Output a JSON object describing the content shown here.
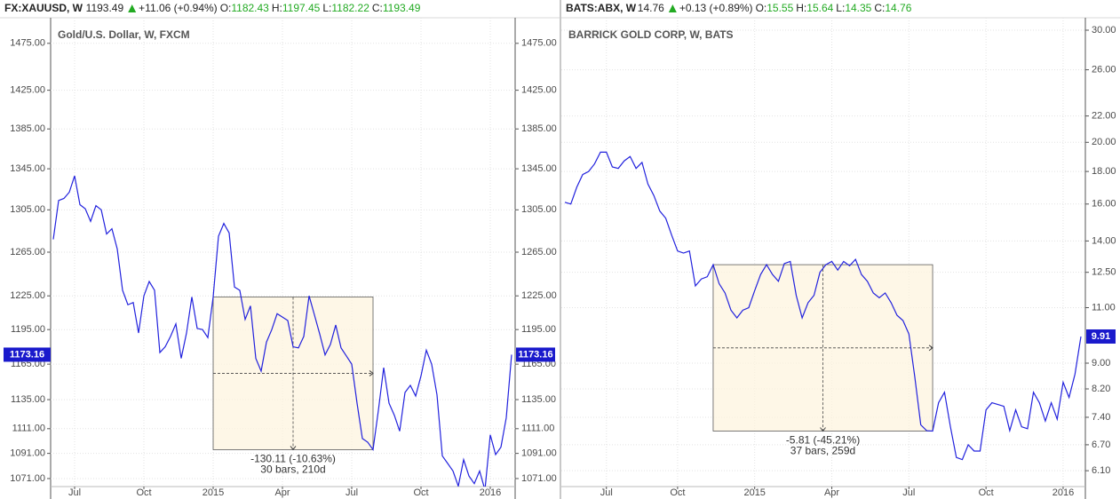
{
  "chart_data": [
    {
      "type": "line",
      "header": {
        "symbol": "FX:XAUUSD, W",
        "last": 1193.49,
        "change": "+11.06 (+0.94%)",
        "fields": [
          {
            "label": "O:",
            "value": 1182.43
          },
          {
            "label": "H:",
            "value": 1197.45
          },
          {
            "label": "L:",
            "value": 1182.22
          },
          {
            "label": "C:",
            "value": 1193.49
          }
        ]
      },
      "title": "Gold/U.S. Dollar, W, FXCM",
      "categories": [
        null,
        null,
        null,
        null,
        "Jul",
        null,
        null,
        null,
        null,
        null,
        null,
        null,
        null,
        null,
        null,
        null,
        null,
        "Oct",
        null,
        null,
        null,
        null,
        null,
        null,
        null,
        null,
        null,
        null,
        null,
        null,
        "2015",
        null,
        null,
        null,
        null,
        null,
        null,
        null,
        null,
        null,
        null,
        null,
        null,
        "Apr",
        null,
        null,
        null,
        null,
        null,
        null,
        null,
        null,
        null,
        null,
        null,
        null,
        "Jul",
        null,
        null,
        null,
        null,
        null,
        null,
        null,
        null,
        null,
        null,
        null,
        null,
        "Oct",
        null,
        null,
        null,
        null,
        null,
        null,
        null,
        null,
        null,
        null,
        null,
        null,
        "2016",
        null,
        null,
        null,
        null
      ],
      "values": [
        1277,
        1314,
        1316,
        1322,
        1338,
        1310,
        1306,
        1294,
        1309,
        1305,
        1282,
        1287,
        1268,
        1230,
        1217,
        1219,
        1192,
        1225,
        1238,
        1230,
        1175,
        1180,
        1189,
        1200,
        1170,
        1192,
        1224,
        1196,
        1195,
        1188,
        1224,
        1280,
        1292,
        1283,
        1233,
        1230,
        1204,
        1216,
        1170,
        1159,
        1184,
        1195,
        1209,
        1206,
        1203,
        1180,
        1179,
        1189,
        1225,
        1208,
        1191,
        1173,
        1182,
        1199,
        1179,
        1172,
        1165,
        1132,
        1103,
        1100,
        1094,
        1126,
        1162,
        1132,
        1122,
        1109,
        1141,
        1147,
        1138,
        1155,
        1177,
        1165,
        1139,
        1089,
        1083,
        1077,
        1065,
        1086,
        1073,
        1067,
        1077,
        1062,
        1106,
        1090,
        1096,
        1120,
        1173.16
      ],
      "color": "#2222dd",
      "log_scale": true,
      "ylim": [
        1064.7,
        1503
      ],
      "yticks": [
        {
          "value": 1071,
          "label": "1071.00"
        },
        {
          "value": 1091,
          "label": "1091.00"
        },
        {
          "value": 1111,
          "label": "1111.00"
        },
        {
          "value": 1135,
          "label": "1135.00"
        },
        {
          "value": 1165,
          "label": "1165.00"
        },
        {
          "value": 1195,
          "label": "1195.00"
        },
        {
          "value": 1225,
          "label": "1225.00"
        },
        {
          "value": 1265,
          "label": "1265.00"
        },
        {
          "value": 1305,
          "label": "1305.00"
        },
        {
          "value": 1345,
          "label": "1345.00"
        },
        {
          "value": 1385,
          "label": "1385.00"
        },
        {
          "value": 1425,
          "label": "1425.00"
        },
        {
          "value": 1475,
          "label": "1475.00"
        }
      ],
      "grid": true,
      "annotation": [
        "-130.11 (-10.63%)",
        "30 bars, 210d"
      ]
    },
    {
      "type": "line",
      "header": {
        "symbol": "BATS:ABX, W",
        "last": 14.76,
        "change": "+0.13 (+0.89%)",
        "fields": [
          {
            "label": "O:",
            "value": 15.55
          },
          {
            "label": "H:",
            "value": 15.64
          },
          {
            "label": "L:",
            "value": 14.35
          },
          {
            "label": "C:",
            "value": 14.76
          }
        ]
      },
      "title": "BARRICK GOLD CORP, W, BATS",
      "categories": [
        null,
        null,
        null,
        null,
        null,
        null,
        null,
        "Jul",
        null,
        null,
        null,
        null,
        null,
        null,
        null,
        null,
        null,
        null,
        null,
        "Oct",
        null,
        null,
        null,
        null,
        null,
        null,
        null,
        null,
        null,
        null,
        null,
        null,
        "2015",
        null,
        null,
        null,
        null,
        null,
        null,
        null,
        null,
        null,
        null,
        null,
        null,
        "Apr",
        null,
        null,
        null,
        null,
        null,
        null,
        null,
        null,
        null,
        null,
        null,
        null,
        "Jul",
        null,
        null,
        null,
        null,
        null,
        null,
        null,
        null,
        null,
        null,
        null,
        null,
        "Oct",
        null,
        null,
        null,
        null,
        null,
        null,
        null,
        null,
        null,
        null,
        null,
        null,
        "2016",
        null,
        null,
        null
      ],
      "values": [
        16.1,
        16.0,
        17.0,
        17.8,
        18.0,
        18.5,
        19.3,
        19.3,
        18.3,
        18.2,
        18.7,
        19.0,
        18.2,
        18.6,
        17.2,
        16.5,
        15.6,
        15.2,
        14.3,
        13.5,
        13.4,
        13.5,
        11.9,
        12.2,
        12.3,
        12.85,
        12.0,
        11.6,
        10.9,
        10.6,
        10.9,
        11.0,
        11.7,
        12.4,
        12.85,
        12.4,
        12.1,
        12.9,
        13.0,
        11.5,
        10.6,
        11.2,
        11.5,
        12.5,
        12.85,
        13.0,
        12.6,
        13.0,
        12.8,
        13.1,
        12.4,
        12.1,
        11.6,
        11.4,
        11.6,
        11.2,
        10.7,
        10.5,
        10.0,
        8.55,
        7.2,
        7.05,
        7.04,
        7.8,
        8.1,
        7.15,
        6.4,
        6.35,
        6.7,
        6.55,
        6.55,
        7.6,
        7.8,
        7.75,
        7.7,
        7.05,
        7.6,
        7.15,
        7.1,
        8.1,
        7.8,
        7.3,
        7.8,
        7.35,
        8.4,
        7.95,
        8.65,
        9.91
      ],
      "color": "#2222dd",
      "log_scale": true,
      "ylim": [
        5.76,
        31.38
      ],
      "yticks": [
        {
          "value": 6.1,
          "label": "6.10"
        },
        {
          "value": 6.7,
          "label": "6.70"
        },
        {
          "value": 7.4,
          "label": "7.40"
        },
        {
          "value": 8.2,
          "label": "8.20"
        },
        {
          "value": 9,
          "label": "9.00"
        },
        {
          "value": 11,
          "label": "11.00"
        },
        {
          "value": 12.5,
          "label": "12.50"
        },
        {
          "value": 14,
          "label": "14.00"
        },
        {
          "value": 16,
          "label": "16.00"
        },
        {
          "value": 18,
          "label": "18.00"
        },
        {
          "value": 20,
          "label": "20.00"
        },
        {
          "value": 22,
          "label": "22.00"
        },
        {
          "value": 26,
          "label": "26.00"
        },
        {
          "value": 30,
          "label": "30.00"
        }
      ],
      "grid": true,
      "annotation": [
        "-5.81 (-45.21%)",
        "37 bars, 259d"
      ]
    }
  ]
}
